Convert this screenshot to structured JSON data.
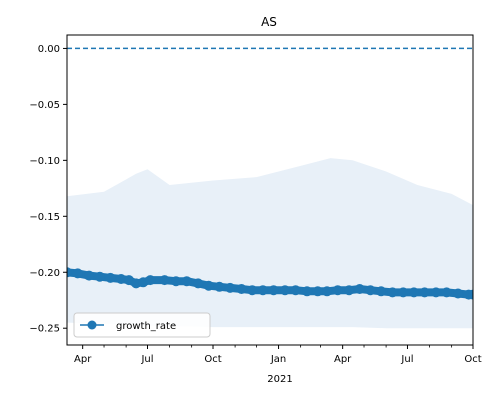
{
  "chart_data": {
    "type": "line",
    "title": "AS",
    "xlabel": "",
    "ylabel": "",
    "x_range": [
      "2020-03-10",
      "2021-10-01"
    ],
    "ylim": [
      -0.265,
      0.012
    ],
    "x_ticks": [
      {
        "date": "2020-04-01",
        "label": "Apr"
      },
      {
        "date": "2020-07-01",
        "label": "Jul"
      },
      {
        "date": "2020-10-01",
        "label": "Oct"
      },
      {
        "date": "2021-01-01",
        "label": "Jan"
      },
      {
        "date": "2021-04-01",
        "label": "Apr"
      },
      {
        "date": "2021-07-01",
        "label": "Jul"
      },
      {
        "date": "2021-10-01",
        "label": "Oct"
      }
    ],
    "x_year_label": "2021",
    "y_ticks": [
      0.0,
      -0.05,
      -0.1,
      -0.15,
      -0.2,
      -0.25
    ],
    "y_tick_labels": [
      "0.00",
      "−0.05",
      "−0.10",
      "−0.15",
      "−0.20",
      "−0.25"
    ],
    "reference_line": {
      "y": 0.0,
      "style": "dashed",
      "color": "#1f77b4"
    },
    "legend": {
      "position": "lower-left",
      "entries": [
        "growth_rate"
      ]
    },
    "grid": false,
    "series": [
      {
        "name": "growth_rate",
        "color": "#1f77b4",
        "marker": "circle",
        "points": [
          {
            "x": "2020-03-10",
            "y": -0.2
          },
          {
            "x": "2020-03-25",
            "y": -0.201
          },
          {
            "x": "2020-04-10",
            "y": -0.203
          },
          {
            "x": "2020-04-25",
            "y": -0.204
          },
          {
            "x": "2020-05-10",
            "y": -0.205
          },
          {
            "x": "2020-05-25",
            "y": -0.206
          },
          {
            "x": "2020-06-05",
            "y": -0.207
          },
          {
            "x": "2020-06-15",
            "y": -0.21
          },
          {
            "x": "2020-06-25",
            "y": -0.209
          },
          {
            "x": "2020-07-05",
            "y": -0.207
          },
          {
            "x": "2020-07-25",
            "y": -0.207
          },
          {
            "x": "2020-08-10",
            "y": -0.208
          },
          {
            "x": "2020-08-25",
            "y": -0.208
          },
          {
            "x": "2020-09-10",
            "y": -0.21
          },
          {
            "x": "2020-09-25",
            "y": -0.212
          },
          {
            "x": "2020-10-10",
            "y": -0.213
          },
          {
            "x": "2020-10-25",
            "y": -0.214
          },
          {
            "x": "2020-11-10",
            "y": -0.215
          },
          {
            "x": "2020-11-25",
            "y": -0.216
          },
          {
            "x": "2020-12-10",
            "y": -0.216
          },
          {
            "x": "2020-12-25",
            "y": -0.216
          },
          {
            "x": "2021-01-10",
            "y": -0.216
          },
          {
            "x": "2021-01-25",
            "y": -0.216
          },
          {
            "x": "2021-02-10",
            "y": -0.217
          },
          {
            "x": "2021-02-25",
            "y": -0.217
          },
          {
            "x": "2021-03-10",
            "y": -0.217
          },
          {
            "x": "2021-03-25",
            "y": -0.216
          },
          {
            "x": "2021-04-10",
            "y": -0.216
          },
          {
            "x": "2021-04-25",
            "y": -0.215
          },
          {
            "x": "2021-05-10",
            "y": -0.216
          },
          {
            "x": "2021-05-25",
            "y": -0.217
          },
          {
            "x": "2021-06-10",
            "y": -0.218
          },
          {
            "x": "2021-06-25",
            "y": -0.218
          },
          {
            "x": "2021-07-10",
            "y": -0.218
          },
          {
            "x": "2021-07-25",
            "y": -0.218
          },
          {
            "x": "2021-08-10",
            "y": -0.218
          },
          {
            "x": "2021-08-25",
            "y": -0.218
          },
          {
            "x": "2021-09-10",
            "y": -0.219
          },
          {
            "x": "2021-09-25",
            "y": -0.22
          },
          {
            "x": "2021-10-01",
            "y": -0.22
          }
        ],
        "band": [
          {
            "x": "2020-03-10",
            "upper": -0.132,
            "lower": -0.245
          },
          {
            "x": "2020-05-01",
            "upper": -0.128,
            "lower": -0.246
          },
          {
            "x": "2020-06-15",
            "upper": -0.112,
            "lower": -0.247
          },
          {
            "x": "2020-07-01",
            "upper": -0.108,
            "lower": -0.248
          },
          {
            "x": "2020-08-01",
            "upper": -0.122,
            "lower": -0.248
          },
          {
            "x": "2020-10-01",
            "upper": -0.118,
            "lower": -0.249
          },
          {
            "x": "2020-12-01",
            "upper": -0.115,
            "lower": -0.249
          },
          {
            "x": "2021-02-01",
            "upper": -0.105,
            "lower": -0.249
          },
          {
            "x": "2021-03-15",
            "upper": -0.098,
            "lower": -0.249
          },
          {
            "x": "2021-04-15",
            "upper": -0.1,
            "lower": -0.249
          },
          {
            "x": "2021-06-01",
            "upper": -0.11,
            "lower": -0.25
          },
          {
            "x": "2021-07-15",
            "upper": -0.122,
            "lower": -0.25
          },
          {
            "x": "2021-09-01",
            "upper": -0.13,
            "lower": -0.25
          },
          {
            "x": "2021-10-01",
            "upper": -0.14,
            "lower": -0.25
          }
        ],
        "band_color": "#e8f0f8"
      }
    ]
  }
}
